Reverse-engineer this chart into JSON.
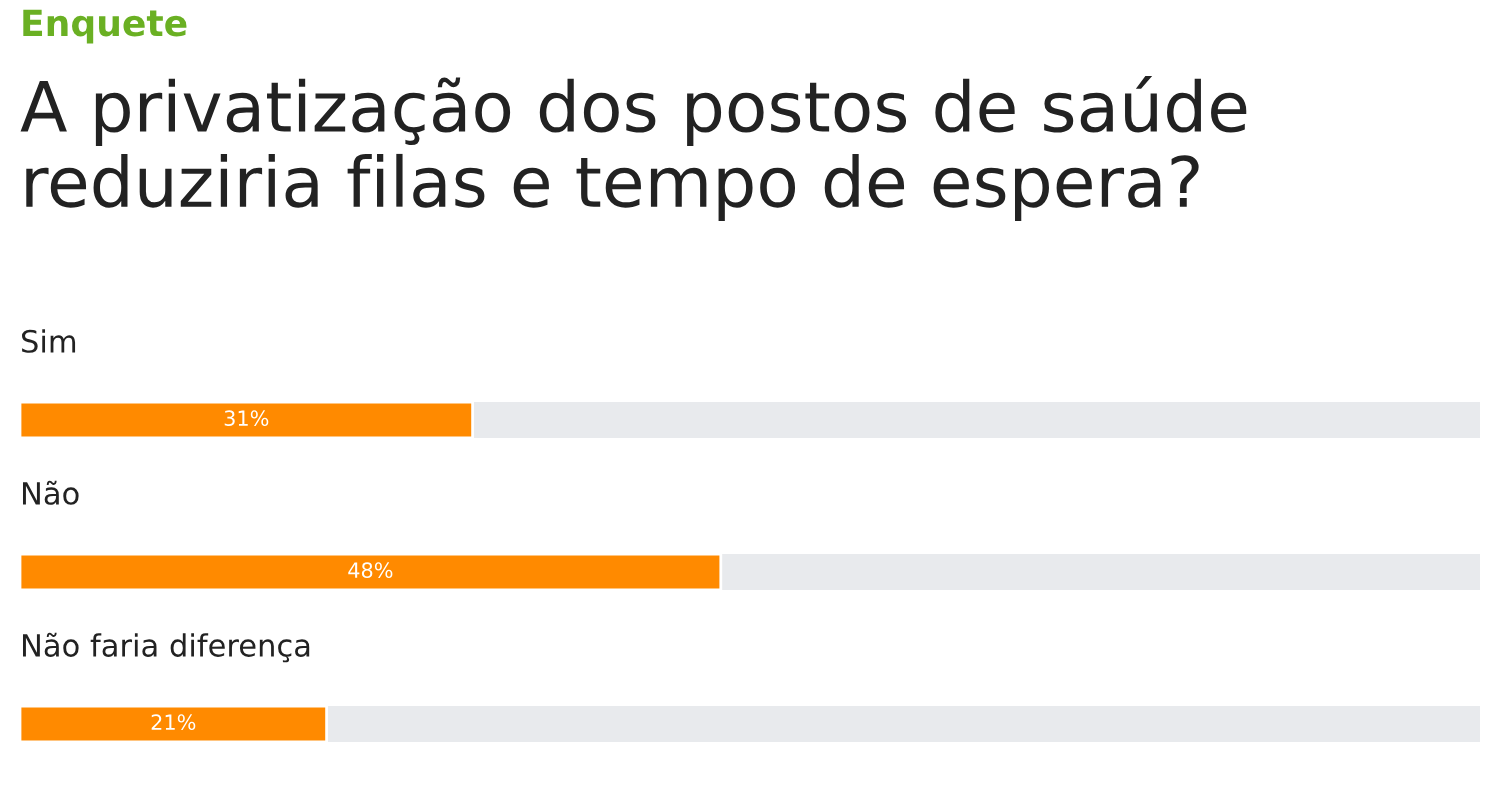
{
  "chart_data": {
    "type": "bar",
    "orientation": "horizontal",
    "subtitle": "Enquete",
    "title": "A privatização dos postos de saúde reduziria filas e tempo de espera?",
    "categories": [
      "Sim",
      "Não",
      "Não faria diferença"
    ],
    "values": [
      31,
      48,
      21
    ],
    "value_labels": [
      "31%",
      "48%",
      "21%"
    ],
    "color": "#ff8a00",
    "xlim": [
      0,
      100
    ]
  }
}
